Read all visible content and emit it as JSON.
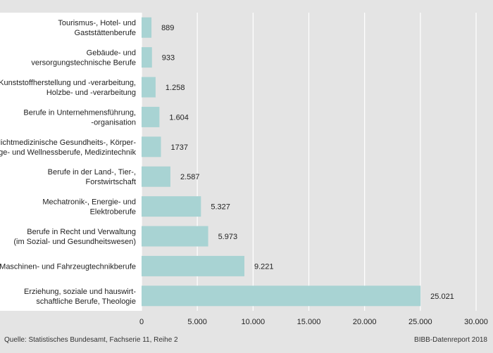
{
  "chart_data": {
    "type": "bar",
    "orientation": "horizontal",
    "categories": [
      [
        "Tourismus-, Hotel- und",
        "Gaststättenberufe"
      ],
      [
        "Gebäude- und",
        "versorgungstechnische Berufe"
      ],
      [
        "Kunststoffherstellung und -verarbeitung,",
        "Holzbe- und -verarbeitung"
      ],
      [
        "Berufe in Unternehmensführung,",
        "-organisation"
      ],
      [
        "Nichtmedizinische Gesundheits-, Körper-",
        "pflege- und Wellnessberufe, Medizintechnik"
      ],
      [
        "Berufe in der Land-, Tier-,",
        "Forstwirtschaft"
      ],
      [
        "Mechatronik-, Energie- und",
        "Elektroberufe"
      ],
      [
        "Berufe in Recht und Verwaltung",
        "(im Sozial- und Gesundheitswesen)"
      ],
      [
        "Maschinen- und Fahrzeugtechnikberufe"
      ],
      [
        "Erziehung, soziale und hauswirt-",
        "schaftliche Berufe, Theologie"
      ]
    ],
    "values": [
      889,
      933,
      1258,
      1604,
      1737,
      2587,
      5327,
      5973,
      9221,
      25021
    ],
    "value_labels": [
      "889",
      "933",
      "1.258",
      "1.604",
      "1737",
      "2.587",
      "5.327",
      "5.973",
      "9.221",
      "25.021"
    ],
    "xlim": [
      0,
      30000
    ],
    "xticks": [
      0,
      5000,
      10000,
      15000,
      20000,
      25000,
      30000
    ],
    "xtick_labels": [
      "0",
      "5.000",
      "10.000",
      "15.000",
      "20.000",
      "25.000",
      "30.000"
    ],
    "grid": true,
    "bar_color": "#a8d3d3",
    "plot_background": "#e4e4e4",
    "label_panel_color": "#ffffff"
  },
  "footer": {
    "source": "Quelle: Statistisches Bundesamt, Fachserie 11, Reihe 2",
    "credit": "BIBB-Datenreport 2018"
  }
}
